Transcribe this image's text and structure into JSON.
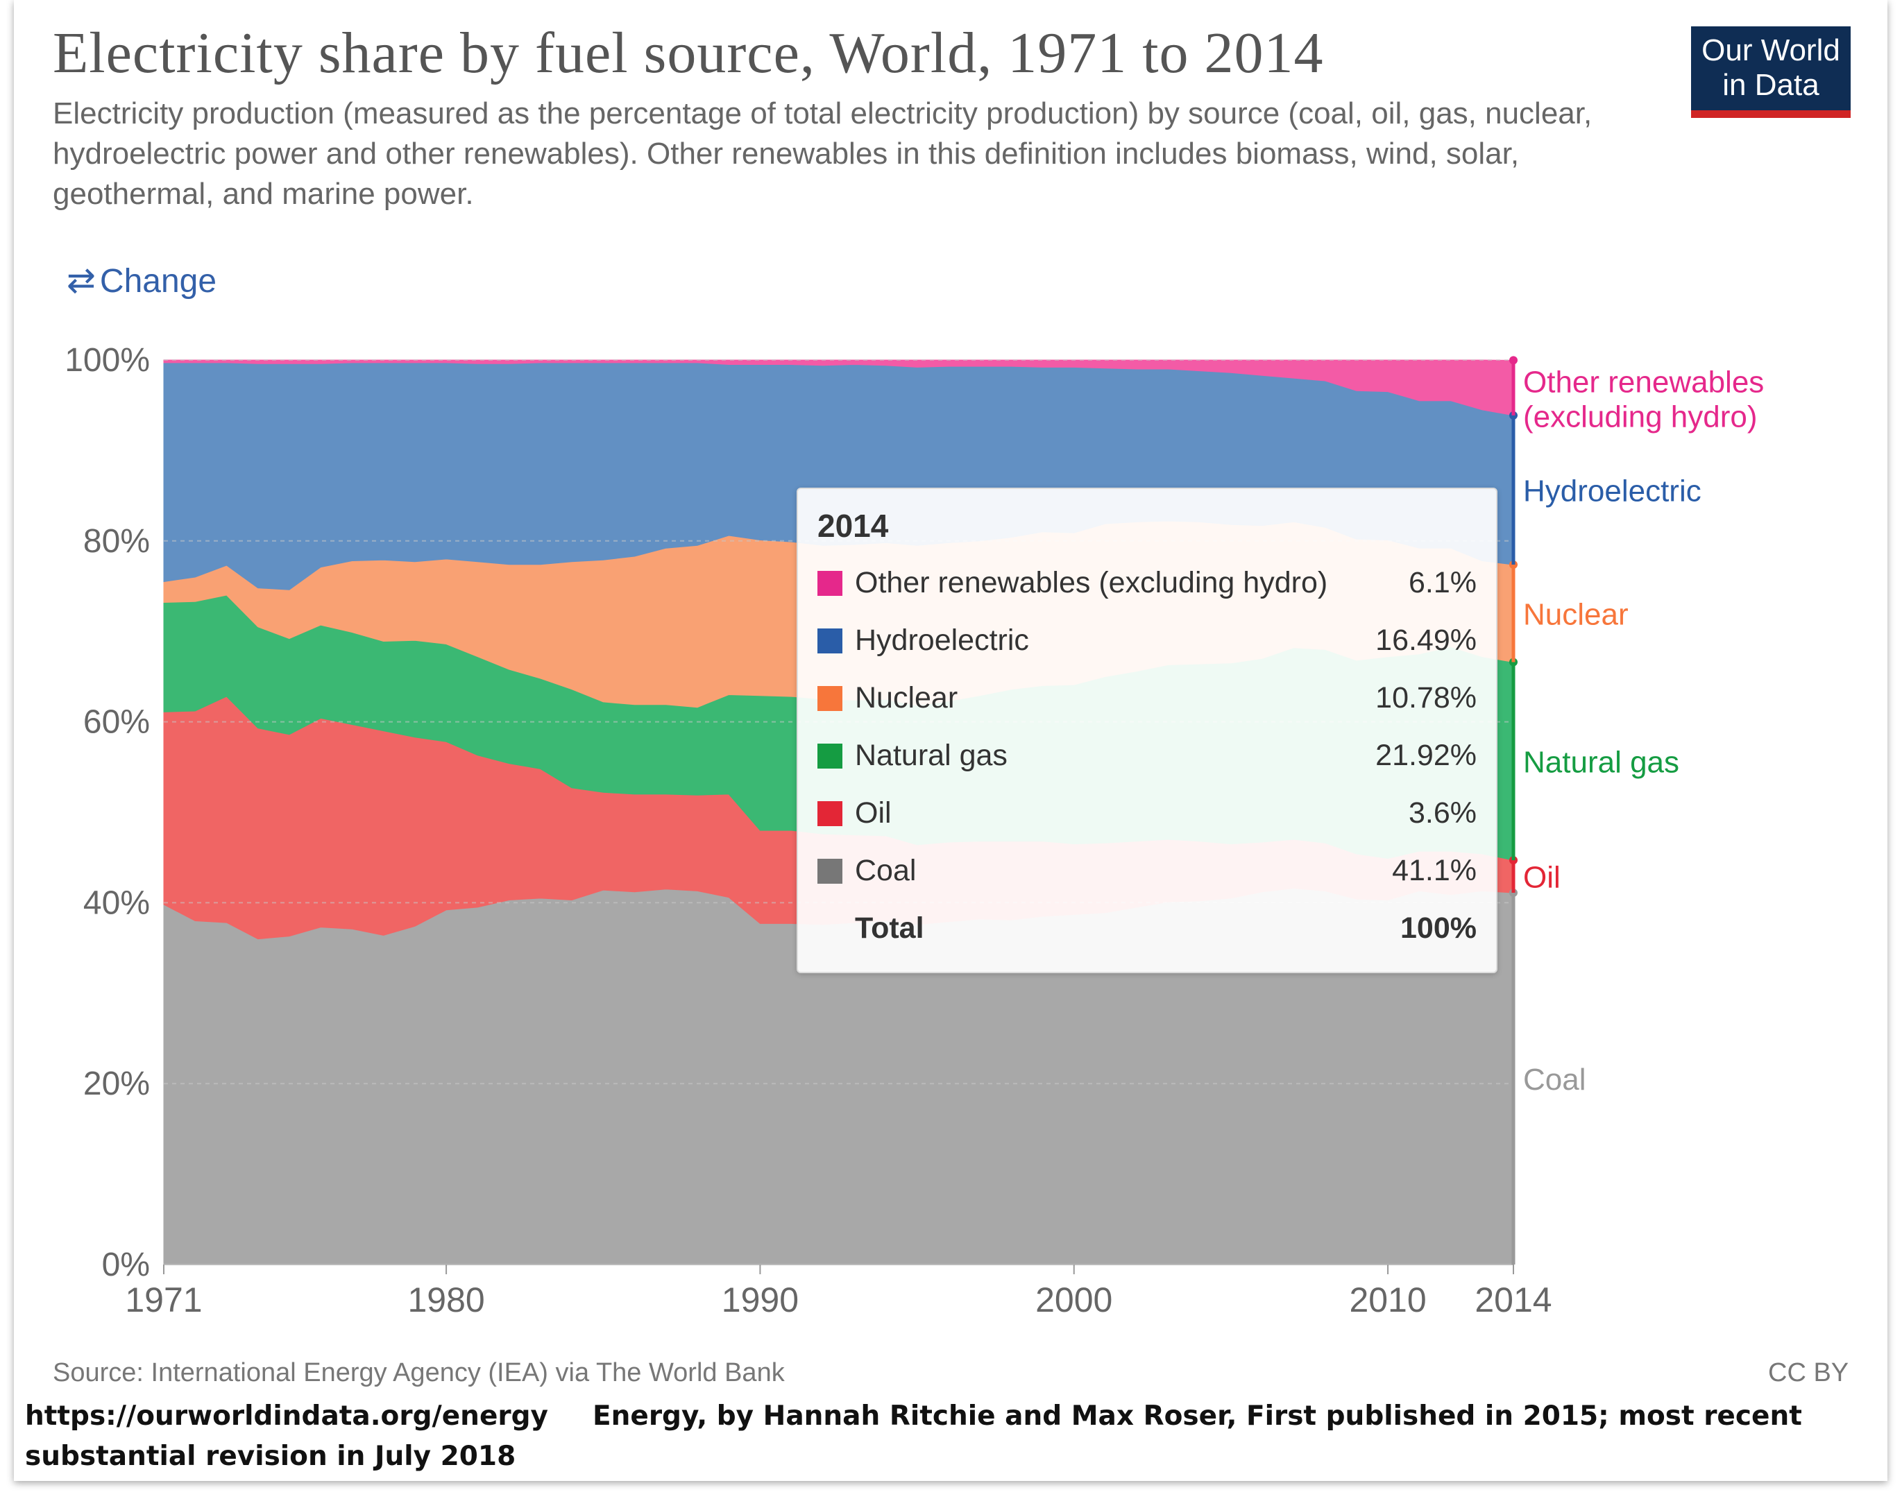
{
  "header": {
    "title": "Electricity share by fuel source, World, 1971 to 2014",
    "subtitle": "Electricity production (measured as the percentage of total electricity production) by source (coal, oil, gas, nuclear, hydroelectric power and other renewables). Other renewables in this definition includes biomass, wind, solar, geothermal, and marine power.",
    "logo_line1": "Our World",
    "logo_line2": "in Data"
  },
  "controls": {
    "change_label": "Change",
    "change_icon": "swap-arrows-icon"
  },
  "footer": {
    "source": "Source: International Energy Agency (IEA) via The World Bank",
    "license": "CC BY",
    "url": "https://ourworldindata.org/energy",
    "credit": "Energy, by Hannah Ritchie and Max Roser, First published in 2015; most recent substantial revision in July 2018"
  },
  "tooltip": {
    "year": "2014",
    "rows": [
      {
        "name": "Other renewables (excluding hydro)",
        "value": "6.1%",
        "color": "#e5288b"
      },
      {
        "name": "Hydroelectric",
        "value": "16.49%",
        "color": "#2a5da8"
      },
      {
        "name": "Nuclear",
        "value": "10.78%",
        "color": "#f7763b"
      },
      {
        "name": "Natural gas",
        "value": "21.92%",
        "color": "#159c42"
      },
      {
        "name": "Oil",
        "value": "3.6%",
        "color": "#e32636"
      },
      {
        "name": "Coal",
        "value": "41.1%",
        "color": "#777777"
      }
    ],
    "total_label": "Total",
    "total_value": "100%"
  },
  "chart_data": {
    "type": "area",
    "stacked": true,
    "title": "Electricity share by fuel source, World, 1971 to 2014",
    "xlabel": "",
    "ylabel": "",
    "xlim": [
      1971,
      2014
    ],
    "ylim": [
      0,
      100
    ],
    "x_ticks": [
      "1971",
      "1980",
      "1990",
      "2000",
      "2010",
      "2014"
    ],
    "x_tick_values": [
      1971,
      1980,
      1990,
      2000,
      2010,
      2014
    ],
    "y_ticks": [
      "0%",
      "20%",
      "40%",
      "60%",
      "80%",
      "100%"
    ],
    "y_tick_values": [
      0,
      20,
      40,
      60,
      80,
      100
    ],
    "x": [
      1971,
      1972,
      1973,
      1974,
      1975,
      1976,
      1977,
      1978,
      1979,
      1980,
      1981,
      1982,
      1983,
      1984,
      1985,
      1986,
      1987,
      1988,
      1989,
      1990,
      1991,
      1992,
      1993,
      1994,
      1995,
      1996,
      1997,
      1998,
      1999,
      2000,
      2001,
      2002,
      2003,
      2004,
      2005,
      2006,
      2007,
      2008,
      2009,
      2010,
      2011,
      2012,
      2013,
      2014
    ],
    "series": [
      {
        "name": "Coal",
        "color": "#a8a8a8",
        "label_color": "#999999",
        "values": [
          39.8,
          38.0,
          37.8,
          36.0,
          36.3,
          37.3,
          37.1,
          36.4,
          37.4,
          39.2,
          39.5,
          40.3,
          40.5,
          40.3,
          41.4,
          41.2,
          41.5,
          41.3,
          40.6,
          37.7,
          37.7,
          37.6,
          37.8,
          38.0,
          37.6,
          37.9,
          38.2,
          38.1,
          38.5,
          38.7,
          38.9,
          39.5,
          40.1,
          40.2,
          40.5,
          41.2,
          41.6,
          41.3,
          40.4,
          40.3,
          41.3,
          40.9,
          41.3,
          41.1
        ]
      },
      {
        "name": "Oil",
        "color": "#f06564",
        "label_color": "#e32636",
        "values": [
          21.3,
          23.2,
          25.0,
          23.3,
          22.3,
          23.1,
          22.6,
          22.6,
          20.9,
          18.6,
          16.8,
          15.1,
          14.3,
          12.4,
          10.8,
          10.8,
          10.5,
          10.6,
          11.4,
          10.3,
          10.3,
          10.0,
          9.7,
          9.4,
          8.8,
          8.8,
          8.6,
          8.7,
          8.3,
          7.8,
          7.7,
          7.3,
          6.9,
          6.6,
          6.0,
          5.5,
          5.4,
          5.3,
          5.0,
          4.6,
          4.4,
          4.8,
          4.1,
          3.6
        ]
      },
      {
        "name": "Natural gas",
        "color": "#3bb873",
        "label_color": "#159c42",
        "values": [
          12.1,
          12.1,
          11.2,
          11.2,
          10.6,
          10.3,
          10.2,
          9.9,
          10.7,
          10.8,
          10.9,
          10.4,
          10.0,
          10.9,
          10.0,
          9.9,
          9.9,
          9.7,
          11.0,
          14.9,
          14.8,
          14.9,
          14.9,
          15.1,
          15.4,
          15.6,
          16.1,
          16.8,
          17.2,
          17.6,
          18.4,
          18.8,
          19.3,
          19.6,
          20.0,
          20.3,
          21.2,
          21.4,
          21.4,
          22.3,
          21.8,
          22.6,
          21.8,
          21.9
        ]
      },
      {
        "name": "Nuclear",
        "color": "#f9a173",
        "label_color": "#f7763b",
        "values": [
          2.3,
          2.7,
          3.3,
          4.3,
          5.4,
          6.4,
          7.9,
          9.0,
          8.7,
          9.4,
          10.5,
          11.6,
          12.6,
          14.1,
          15.7,
          16.4,
          17.3,
          17.9,
          17.6,
          17.2,
          17.1,
          17.0,
          17.2,
          17.3,
          17.7,
          17.5,
          17.1,
          16.8,
          17.0,
          16.8,
          16.9,
          16.5,
          15.9,
          15.7,
          15.3,
          14.7,
          13.9,
          13.5,
          13.4,
          12.9,
          11.7,
          10.9,
          10.6,
          10.78
        ]
      },
      {
        "name": "Hydroelectric",
        "color": "#6290c3",
        "label_color": "#2a5da8",
        "values": [
          24.2,
          23.7,
          22.4,
          24.8,
          25.0,
          22.5,
          21.9,
          21.8,
          22.0,
          21.7,
          21.9,
          22.2,
          22.3,
          22.0,
          21.8,
          21.4,
          20.5,
          20.2,
          18.9,
          19.4,
          19.6,
          19.9,
          19.9,
          19.6,
          19.7,
          19.5,
          19.3,
          18.9,
          18.2,
          18.3,
          17.2,
          16.9,
          16.8,
          16.7,
          16.8,
          16.6,
          15.9,
          16.2,
          16.4,
          16.4,
          16.3,
          16.3,
          16.7,
          16.49
        ]
      },
      {
        "name": "Other renewables (excluding hydro)",
        "color": "#f35ba6",
        "label_color": "#e5288b",
        "values": [
          0.3,
          0.3,
          0.3,
          0.4,
          0.4,
          0.4,
          0.3,
          0.3,
          0.3,
          0.3,
          0.4,
          0.4,
          0.3,
          0.3,
          0.3,
          0.3,
          0.3,
          0.3,
          0.5,
          0.5,
          0.5,
          0.6,
          0.5,
          0.6,
          0.8,
          0.7,
          0.7,
          0.7,
          0.8,
          0.8,
          0.9,
          1.0,
          1.0,
          1.2,
          1.4,
          1.7,
          2.0,
          2.3,
          3.4,
          3.5,
          4.5,
          4.5,
          5.5,
          6.1
        ]
      }
    ],
    "end_labels": [
      {
        "series": "Other renewables (excluding hydro)",
        "lines": [
          "Other renewables",
          "(excluding hydro)"
        ]
      },
      {
        "series": "Hydroelectric",
        "lines": [
          "Hydroelectric"
        ]
      },
      {
        "series": "Nuclear",
        "lines": [
          "Nuclear"
        ]
      },
      {
        "series": "Natural gas",
        "lines": [
          "Natural gas"
        ]
      },
      {
        "series": "Oil",
        "lines": [
          "Oil"
        ]
      },
      {
        "series": "Coal",
        "lines": [
          "Coal"
        ]
      }
    ]
  }
}
